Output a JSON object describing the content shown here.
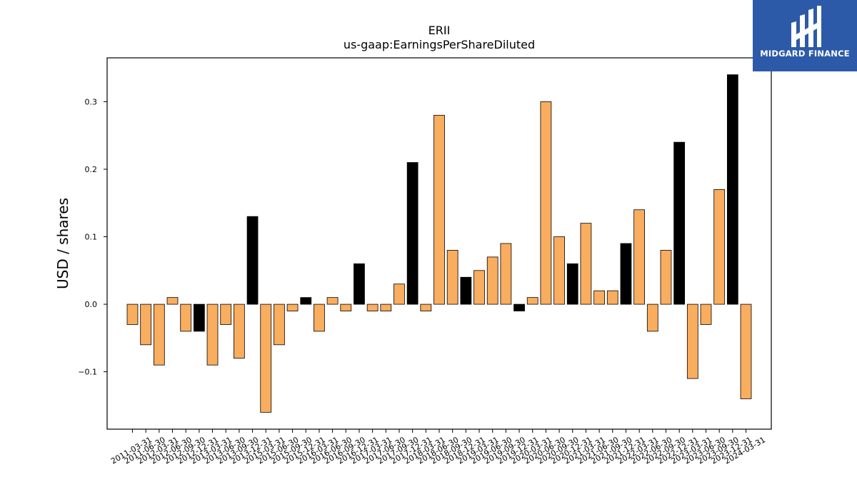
{
  "chart_data": {
    "type": "bar",
    "title": "ERII",
    "subtitle": "us-gaap:EarningsPerShareDiluted",
    "ylabel": "USD / shares",
    "ylim": [
      -0.185,
      0.365
    ],
    "yticks": [
      -0.1,
      0.0,
      0.1,
      0.2,
      0.3
    ],
    "ytick_labels": [
      "−0.1",
      "0.0",
      "0.1",
      "0.2",
      "0.3"
    ],
    "categories": [
      "2011-03-31",
      "2011-06-30",
      "2012-03-31",
      "2012-06-30",
      "2012-09-30",
      "2012-12-31",
      "2013-03-31",
      "2013-06-30",
      "2013-09-30",
      "2013-12-31",
      "2015-03-31",
      "2015-06-30",
      "2015-09-30",
      "2015-12-31",
      "2016-03-31",
      "2016-06-30",
      "2016-09-30",
      "2016-12-31",
      "2017-03-31",
      "2017-06-30",
      "2017-09-30",
      "2017-12-31",
      "2018-03-31",
      "2018-06-30",
      "2018-09-30",
      "2018-12-31",
      "2019-03-31",
      "2019-06-30",
      "2019-09-30",
      "2019-12-31",
      "2020-03-31",
      "2020-06-30",
      "2020-09-30",
      "2020-12-31",
      "2021-03-31",
      "2021-06-30",
      "2021-09-30",
      "2021-12-31",
      "2022-03-31",
      "2022-06-30",
      "2022-09-30",
      "2022-12-31",
      "2023-03-31",
      "2023-06-30",
      "2023-09-30",
      "2023-12-31",
      "2024-03-31"
    ],
    "values": [
      -0.03,
      -0.06,
      -0.09,
      0.01,
      -0.04,
      -0.04,
      -0.09,
      -0.03,
      -0.08,
      0.13,
      -0.16,
      -0.06,
      -0.01,
      0.01,
      -0.04,
      0.01,
      -0.01,
      0.06,
      -0.01,
      -0.01,
      0.03,
      0.21,
      -0.01,
      0.28,
      0.08,
      0.04,
      0.05,
      0.07,
      0.09,
      -0.01,
      0.01,
      0.3,
      0.1,
      0.06,
      0.12,
      0.02,
      0.02,
      0.09,
      0.14,
      -0.04,
      0.08,
      0.24,
      -0.11,
      -0.03,
      0.17,
      0.34,
      -0.14
    ],
    "highlight": [
      false,
      false,
      false,
      false,
      false,
      true,
      false,
      false,
      false,
      true,
      false,
      false,
      false,
      true,
      false,
      false,
      false,
      true,
      false,
      false,
      false,
      true,
      false,
      false,
      false,
      true,
      false,
      false,
      false,
      true,
      false,
      false,
      false,
      true,
      false,
      false,
      false,
      true,
      false,
      false,
      false,
      true,
      false,
      false,
      false,
      true,
      false
    ],
    "colors": {
      "bar": "#f9ad5f",
      "highlight_bar": "#000000",
      "edge": "#000000"
    },
    "grid": false,
    "legend": "none"
  },
  "logo": {
    "text": "MIDGARD FINANCE",
    "color": "#2c5aa8"
  }
}
